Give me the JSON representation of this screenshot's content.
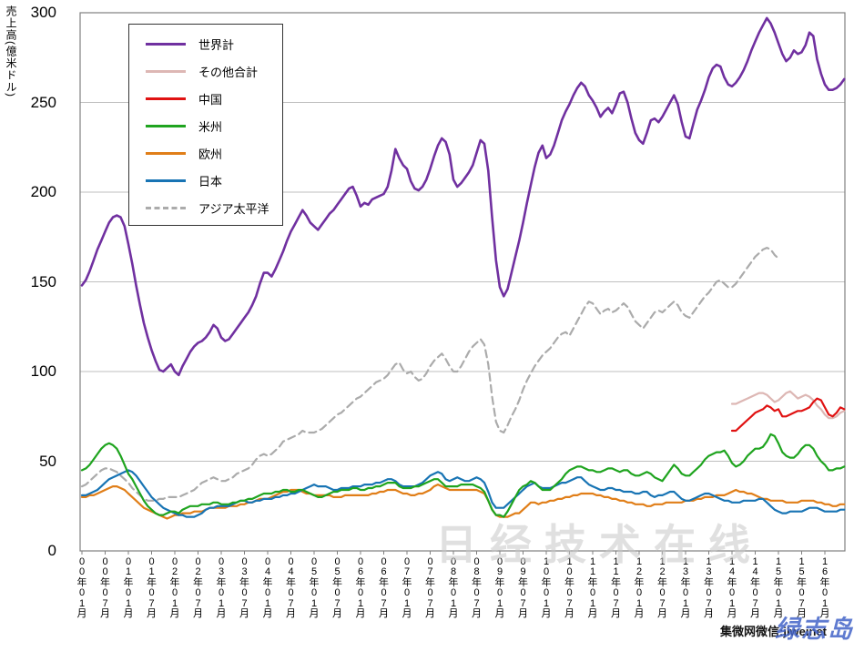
{
  "chart_data": {
    "type": "line",
    "title": "",
    "ylabel": "売上高(億米ドル)",
    "xlabel": "",
    "ylim": [
      0,
      300
    ],
    "grid": "horizontal",
    "legend_position": "top-left-inside",
    "x_start": "2000-01",
    "x_end": "2016-06",
    "x_interval": "monthly",
    "y_ticks": [
      "0",
      "50",
      "100",
      "150",
      "200",
      "250",
      "300"
    ],
    "x_labels": [
      "00年01月",
      "00年07月",
      "01年01月",
      "01年07月",
      "02年01月",
      "02年07月",
      "03年01月",
      "03年07月",
      "04年01月",
      "04年07月",
      "05年01月",
      "05年07月",
      "06年01月",
      "06年07月",
      "07年01月",
      "07年07月",
      "08年01月",
      "08年07月",
      "09年01月",
      "09年07月",
      "10年01月",
      "10年07月",
      "11年01月",
      "11年07月",
      "12年01月",
      "12年07月",
      "13年01月",
      "13年07月",
      "14年01月",
      "14年07月",
      "15年01月",
      "15年07月",
      "16年01月"
    ],
    "series": [
      {
        "name": "世界計",
        "color": "#7030A0",
        "dashed": false,
        "width": 2.6,
        "start_month": 0,
        "values": [
          148,
          151,
          156,
          162,
          168,
          173,
          178,
          183,
          186,
          187,
          186,
          181,
          171,
          160,
          148,
          137,
          127,
          119,
          112,
          106,
          101,
          100,
          102,
          104,
          100,
          98,
          103,
          107,
          111,
          114,
          116,
          117,
          119,
          122,
          126,
          124,
          119,
          117,
          118,
          121,
          124,
          127,
          130,
          133,
          137,
          142,
          149,
          155,
          155,
          153,
          157,
          162,
          167,
          173,
          178,
          182,
          186,
          190,
          187,
          183,
          181,
          179,
          182,
          185,
          188,
          190,
          193,
          196,
          199,
          202,
          203,
          198,
          192,
          194,
          193,
          196,
          197,
          198,
          199,
          203,
          212,
          224,
          219,
          215,
          213,
          206,
          202,
          201,
          203,
          207,
          213,
          220,
          226,
          230,
          228,
          221,
          207,
          203,
          205,
          208,
          211,
          215,
          222,
          229,
          227,
          212,
          186,
          162,
          147,
          142,
          146,
          155,
          164,
          173,
          183,
          194,
          204,
          214,
          222,
          226,
          219,
          221,
          226,
          233,
          240,
          245,
          249,
          254,
          258,
          261,
          259,
          254,
          251,
          247,
          242,
          245,
          247,
          244,
          249,
          255,
          256,
          250,
          241,
          233,
          229,
          227,
          233,
          240,
          241,
          239,
          242,
          246,
          250,
          254,
          249,
          239,
          231,
          230,
          238,
          246,
          251,
          257,
          264,
          269,
          271,
          270,
          264,
          260,
          259,
          261,
          264,
          268,
          273,
          279,
          284,
          289,
          293,
          297,
          294,
          289,
          283,
          277,
          273,
          275,
          279,
          277,
          278,
          282,
          289,
          287,
          274,
          266,
          260,
          257,
          257,
          258,
          260,
          263
        ]
      },
      {
        "name": "その他合計",
        "color": "#DDB7B4",
        "dashed": false,
        "width": 2.2,
        "start_month": 168,
        "values": [
          82,
          82,
          83,
          84,
          85,
          86,
          87,
          88,
          88,
          87,
          85,
          83,
          84,
          86,
          88,
          89,
          87,
          85,
          86,
          87,
          86,
          84,
          81,
          79,
          76,
          74,
          74,
          75,
          77,
          78
        ]
      },
      {
        "name": "中国",
        "color": "#E01212",
        "dashed": false,
        "width": 2.2,
        "start_month": 168,
        "values": [
          67,
          67,
          69,
          71,
          73,
          75,
          77,
          78,
          79,
          81,
          80,
          78,
          79,
          75,
          75,
          76,
          77,
          78,
          78,
          79,
          80,
          83,
          85,
          84,
          80,
          76,
          75,
          77,
          80,
          79
        ]
      },
      {
        "name": "米州",
        "color": "#1FA41F",
        "dashed": false,
        "width": 2.2,
        "start_month": 0,
        "values": [
          45,
          46,
          48,
          51,
          54,
          57,
          59,
          60,
          59,
          57,
          53,
          48,
          43,
          40,
          36,
          32,
          28,
          25,
          23,
          21,
          20,
          20,
          21,
          22,
          22,
          21,
          23,
          24,
          25,
          25,
          25,
          26,
          26,
          26,
          27,
          27,
          26,
          26,
          26,
          27,
          27,
          28,
          28,
          29,
          29,
          30,
          31,
          32,
          32,
          32,
          33,
          33,
          34,
          34,
          33,
          33,
          34,
          34,
          33,
          32,
          31,
          30,
          30,
          31,
          32,
          33,
          33,
          34,
          34,
          34,
          35,
          35,
          34,
          34,
          35,
          35,
          36,
          36,
          37,
          38,
          38,
          38,
          36,
          35,
          35,
          35,
          36,
          36,
          37,
          38,
          39,
          40,
          40,
          38,
          36,
          36,
          36,
          36,
          37,
          37,
          37,
          37,
          36,
          35,
          33,
          28,
          23,
          20,
          20,
          19,
          22,
          26,
          30,
          34,
          36,
          37,
          39,
          38,
          36,
          34,
          34,
          34,
          36,
          38,
          40,
          43,
          45,
          46,
          47,
          47,
          46,
          45,
          45,
          44,
          44,
          45,
          46,
          46,
          45,
          44,
          45,
          45,
          43,
          42,
          42,
          43,
          44,
          43,
          41,
          40,
          39,
          42,
          45,
          48,
          46,
          43,
          42,
          42,
          44,
          46,
          48,
          51,
          53,
          54,
          55,
          55,
          56,
          53,
          49,
          47,
          48,
          50,
          53,
          55,
          57,
          57,
          58,
          61,
          65,
          64,
          60,
          55,
          53,
          52,
          52,
          54,
          57,
          59,
          59,
          57,
          53,
          50,
          48,
          45,
          45,
          46,
          46,
          47
        ]
      },
      {
        "name": "欧州",
        "color": "#E07E18",
        "dashed": false,
        "width": 2.2,
        "start_month": 0,
        "values": [
          30,
          30,
          31,
          31,
          32,
          33,
          34,
          35,
          36,
          36,
          35,
          34,
          32,
          30,
          28,
          26,
          24,
          23,
          22,
          21,
          20,
          19,
          18,
          19,
          20,
          20,
          21,
          21,
          21,
          22,
          22,
          22,
          23,
          24,
          24,
          24,
          24,
          24,
          25,
          25,
          25,
          26,
          26,
          27,
          27,
          28,
          29,
          29,
          29,
          30,
          31,
          32,
          33,
          33,
          34,
          34,
          34,
          33,
          32,
          32,
          31,
          31,
          31,
          31,
          31,
          30,
          30,
          30,
          31,
          31,
          31,
          31,
          31,
          31,
          31,
          32,
          32,
          33,
          33,
          34,
          34,
          34,
          33,
          32,
          32,
          31,
          31,
          32,
          32,
          33,
          34,
          36,
          37,
          36,
          35,
          34,
          34,
          34,
          34,
          34,
          34,
          34,
          34,
          33,
          32,
          28,
          23,
          20,
          19,
          19,
          19,
          20,
          21,
          21,
          23,
          25,
          27,
          27,
          26,
          27,
          27,
          28,
          28,
          29,
          29,
          30,
          30,
          31,
          31,
          32,
          32,
          32,
          32,
          31,
          31,
          30,
          30,
          29,
          29,
          28,
          28,
          27,
          27,
          26,
          26,
          26,
          25,
          25,
          26,
          26,
          26,
          27,
          27,
          27,
          27,
          27,
          28,
          28,
          28,
          29,
          29,
          30,
          30,
          30,
          31,
          31,
          31,
          32,
          33,
          34,
          33,
          33,
          32,
          32,
          31,
          30,
          29,
          29,
          28,
          28,
          28,
          28,
          27,
          27,
          27,
          27,
          28,
          28,
          28,
          28,
          27,
          27,
          26,
          26,
          25,
          25,
          26,
          26
        ]
      },
      {
        "name": "日本",
        "color": "#1874B4",
        "dashed": false,
        "width": 2.2,
        "start_month": 0,
        "values": [
          31,
          31,
          32,
          33,
          34,
          36,
          38,
          40,
          41,
          42,
          43,
          44,
          45,
          44,
          42,
          39,
          36,
          33,
          30,
          28,
          26,
          24,
          23,
          22,
          21,
          20,
          20,
          19,
          19,
          19,
          20,
          21,
          23,
          24,
          24,
          25,
          25,
          25,
          25,
          26,
          27,
          28,
          28,
          27,
          27,
          28,
          28,
          29,
          29,
          29,
          30,
          30,
          31,
          31,
          32,
          32,
          33,
          34,
          35,
          36,
          37,
          36,
          36,
          36,
          35,
          34,
          34,
          35,
          35,
          35,
          36,
          36,
          36,
          37,
          37,
          37,
          38,
          38,
          39,
          40,
          40,
          39,
          37,
          36,
          36,
          36,
          36,
          37,
          38,
          40,
          42,
          43,
          44,
          43,
          40,
          39,
          40,
          41,
          40,
          39,
          39,
          40,
          41,
          40,
          38,
          33,
          27,
          24,
          24,
          24,
          26,
          28,
          30,
          32,
          34,
          36,
          37,
          38,
          36,
          35,
          35,
          35,
          36,
          37,
          38,
          38,
          39,
          40,
          41,
          41,
          39,
          37,
          36,
          35,
          34,
          34,
          35,
          35,
          34,
          34,
          33,
          33,
          33,
          32,
          32,
          33,
          33,
          31,
          30,
          31,
          31,
          32,
          33,
          33,
          31,
          29,
          28,
          28,
          29,
          30,
          31,
          32,
          32,
          31,
          30,
          29,
          28,
          28,
          27,
          27,
          27,
          28,
          28,
          28,
          28,
          29,
          29,
          27,
          25,
          23,
          22,
          21,
          21,
          22,
          22,
          22,
          22,
          23,
          24,
          24,
          24,
          23,
          22,
          22,
          22,
          22,
          23,
          23
        ]
      },
      {
        "name": "アジア太平洋",
        "color": "#ABABAB",
        "dashed": true,
        "width": 2.2,
        "start_month": 0,
        "values": [
          36,
          37,
          39,
          41,
          43,
          45,
          46,
          46,
          45,
          44,
          42,
          40,
          38,
          35,
          33,
          31,
          29,
          28,
          28,
          28,
          29,
          29,
          30,
          30,
          30,
          30,
          31,
          32,
          33,
          34,
          36,
          38,
          39,
          40,
          41,
          40,
          39,
          39,
          40,
          41,
          43,
          44,
          45,
          46,
          48,
          51,
          53,
          54,
          53,
          54,
          56,
          58,
          61,
          62,
          63,
          64,
          65,
          67,
          66,
          66,
          66,
          67,
          68,
          70,
          72,
          74,
          76,
          77,
          79,
          81,
          83,
          85,
          86,
          88,
          90,
          92,
          94,
          95,
          96,
          98,
          101,
          104,
          105,
          101,
          99,
          100,
          97,
          95,
          96,
          99,
          103,
          106,
          108,
          110,
          107,
          103,
          100,
          100,
          103,
          107,
          111,
          114,
          116,
          118,
          115,
          104,
          86,
          72,
          67,
          66,
          70,
          75,
          79,
          84,
          90,
          95,
          99,
          103,
          106,
          109,
          111,
          113,
          116,
          119,
          121,
          122,
          120,
          124,
          128,
          132,
          136,
          139,
          138,
          135,
          132,
          134,
          135,
          133,
          134,
          136,
          138,
          136,
          132,
          128,
          126,
          124,
          127,
          130,
          133,
          134,
          133,
          135,
          137,
          139,
          137,
          133,
          131,
          130,
          133,
          136,
          139,
          142,
          144,
          147,
          150,
          151,
          149,
          147,
          147,
          149,
          152,
          155,
          158,
          161,
          164,
          166,
          168,
          169,
          168,
          165,
          163
        ]
      }
    ],
    "draw_order": [
      6,
      4,
      5,
      3,
      1,
      2,
      0
    ]
  },
  "watermarks": {
    "main": "日经技术在线",
    "credit": "集微网微信:jiweinet",
    "blue": "绿志岛"
  }
}
